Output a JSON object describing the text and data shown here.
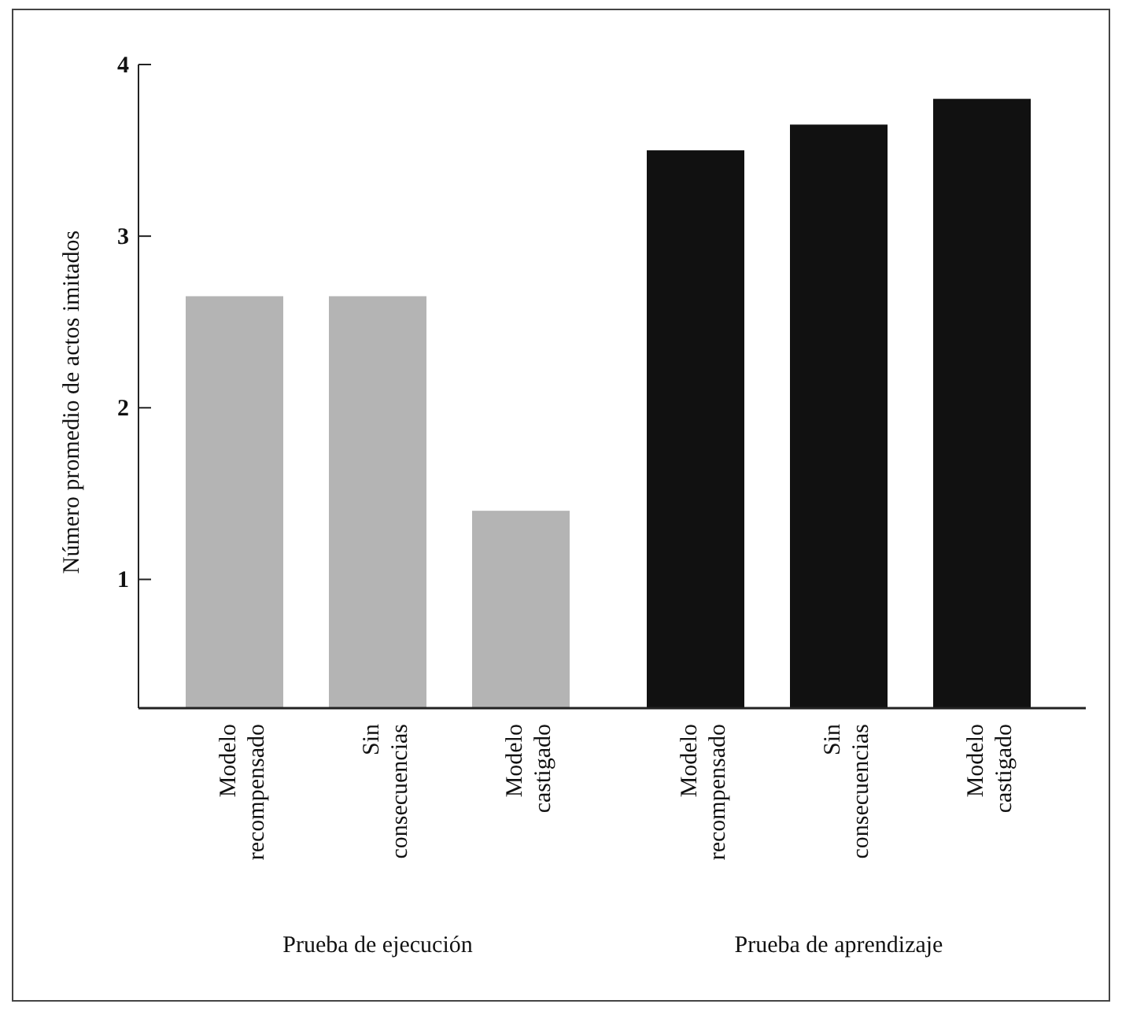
{
  "chart_data": {
    "type": "bar",
    "ylabel": "Número promedio de actos imitados",
    "categories": [
      "Modelo\nrecompensado",
      "Sin\nconsecuencias",
      "Modelo\ncastigado",
      "Modelo\nrecompensado",
      "Sin\nconsecuencias",
      "Modelo\ncastigado"
    ],
    "values": [
      2.65,
      2.65,
      1.4,
      3.5,
      3.65,
      3.8
    ],
    "colors": [
      "#b4b4b4",
      "#b4b4b4",
      "#b4b4b4",
      "#111111",
      "#111111",
      "#111111"
    ],
    "ylim": [
      0.25,
      4
    ],
    "yticks": [
      1,
      2,
      3,
      4
    ],
    "annotations": [
      "Prueba de ejecución",
      "Prueba de aprendizaje"
    ]
  }
}
